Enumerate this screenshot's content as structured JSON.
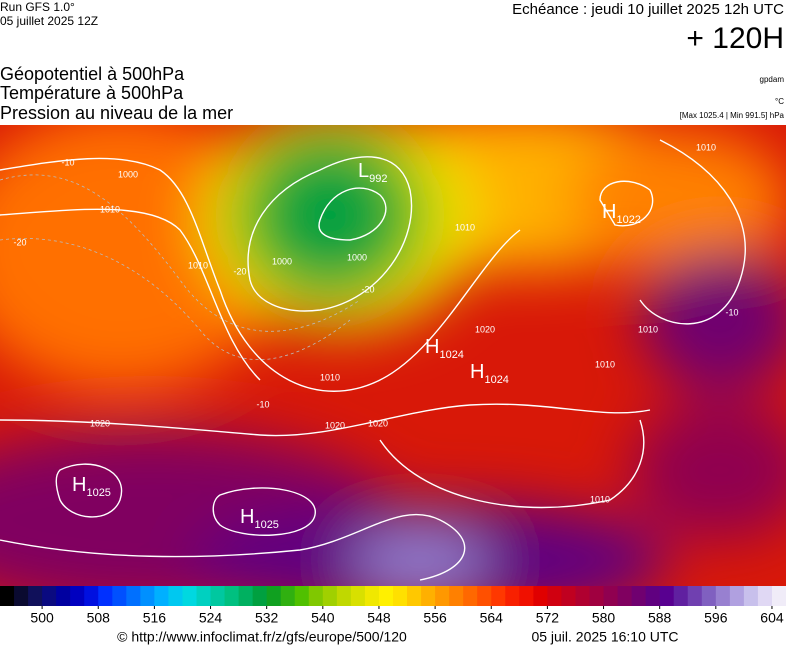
{
  "header": {
    "run": "Run GFS 1.0°",
    "run_date": "05 juillet 2025 12Z",
    "forecast": "Echéance : jeudi 10 juillet 2025 12h UTC",
    "lead": "+ 120H",
    "fields": [
      "Géopotentiel à 500hPa",
      "Température à 500hPa",
      "Pression au niveau de la mer"
    ],
    "units": [
      "gpdam",
      "°C"
    ],
    "range": "[Max 1025.4 | Min 991.5] hPa"
  },
  "map": {
    "centers": [
      {
        "letter": "L",
        "value": "992"
      },
      {
        "letter": "H",
        "value": "1022"
      },
      {
        "letter": "H",
        "value": "1024"
      },
      {
        "letter": "H",
        "value": "1024"
      },
      {
        "letter": "H",
        "value": "1025"
      },
      {
        "letter": "H",
        "value": "1025"
      }
    ],
    "isobar_labels": [
      "1000",
      "1000",
      "1000",
      "1010",
      "1010",
      "1010",
      "1010",
      "1010",
      "1010",
      "1010",
      "1010",
      "1020",
      "1020",
      "1020",
      "1020"
    ],
    "temperature_labels": [
      "-10",
      "-10",
      "-10",
      "-20",
      "-20",
      "-20"
    ]
  },
  "colorbar": {
    "lim": [
      494,
      606
    ],
    "ticks": [
      500,
      508,
      516,
      524,
      532,
      540,
      548,
      556,
      564,
      572,
      580,
      588,
      596,
      604
    ],
    "colors": [
      "#000000",
      "#0a0a30",
      "#10105a",
      "#0a0a80",
      "#0000a0",
      "#0000c0",
      "#0010e0",
      "#0030ff",
      "#0050ff",
      "#0070ff",
      "#0090ff",
      "#00b0ff",
      "#00c8f0",
      "#00d8e0",
      "#00d0c0",
      "#00c8a0",
      "#00c080",
      "#00b060",
      "#00a040",
      "#10a020",
      "#30b010",
      "#50c000",
      "#80c800",
      "#a0d000",
      "#c0d800",
      "#d8e000",
      "#f0e800",
      "#fff000",
      "#ffe000",
      "#ffc800",
      "#ffb000",
      "#ff9800",
      "#ff8000",
      "#ff6800",
      "#ff5000",
      "#ff3800",
      "#f82000",
      "#f01000",
      "#e00000",
      "#d00010",
      "#c00020",
      "#b00030",
      "#a00040",
      "#900050",
      "#800060",
      "#700070",
      "#600080",
      "#580090",
      "#6020a0",
      "#7040b0",
      "#8060c0",
      "#9880d0",
      "#b0a0e0",
      "#c8c0ec",
      "#e0d8f4",
      "#f0ecf8"
    ]
  },
  "footer": {
    "url": "© http://www.infoclimat.fr/z/gfs/europe/500/120",
    "timestamp": "05 juil. 2025 16:10 UTC"
  }
}
